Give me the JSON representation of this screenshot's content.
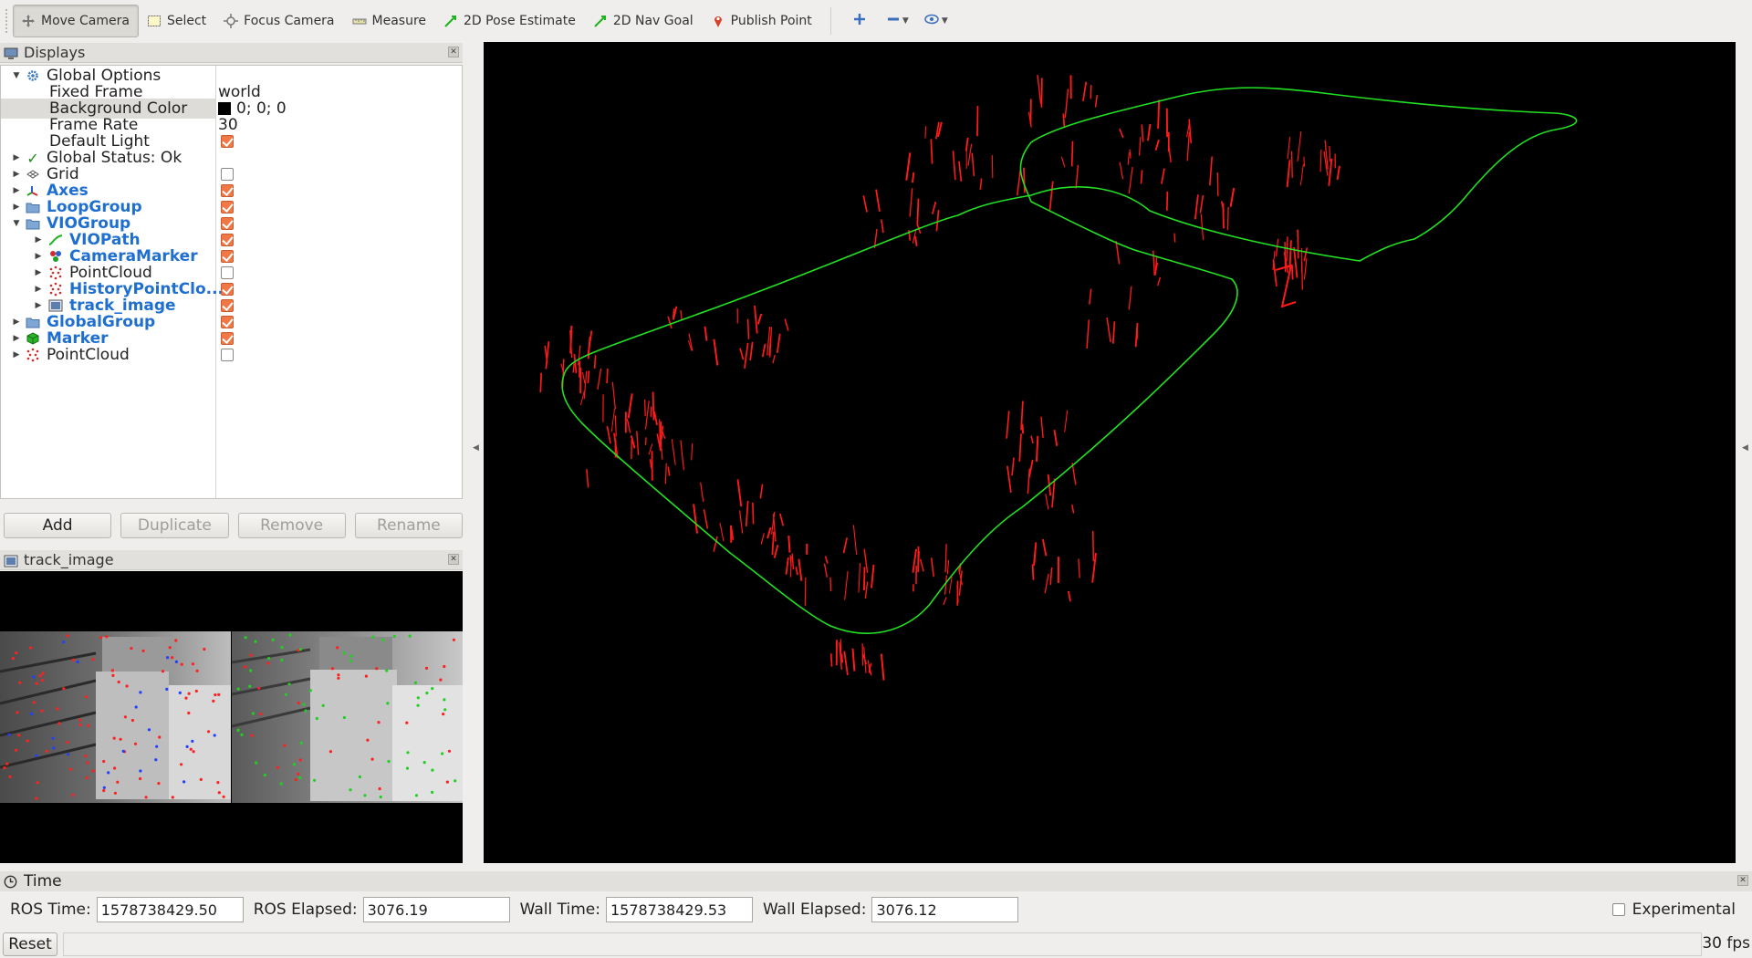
{
  "toolbar": {
    "tools": [
      {
        "label": "Move Camera",
        "icon": "move-camera-icon",
        "active": true
      },
      {
        "label": "Select",
        "icon": "select-icon",
        "active": false
      },
      {
        "label": "Focus Camera",
        "icon": "focus-camera-icon",
        "active": false
      },
      {
        "label": "Measure",
        "icon": "measure-icon",
        "active": false
      },
      {
        "label": "2D Pose Estimate",
        "icon": "pose-estimate-icon",
        "active": false
      },
      {
        "label": "2D Nav Goal",
        "icon": "nav-goal-icon",
        "active": false
      },
      {
        "label": "Publish Point",
        "icon": "publish-point-icon",
        "active": false
      }
    ],
    "extra_buttons": [
      "plus-icon",
      "minus-icon",
      "eye-icon"
    ]
  },
  "displays": {
    "title": "Displays",
    "rows": [
      {
        "label": "Global Options",
        "value": ""
      },
      {
        "label": "Fixed Frame",
        "value": "world"
      },
      {
        "label": "Background Color",
        "value": "0; 0; 0"
      },
      {
        "label": "Frame Rate",
        "value": "30"
      },
      {
        "label": "Default Light",
        "checked": true
      },
      {
        "label": "Global Status: Ok",
        "value": ""
      },
      {
        "label": "Grid",
        "checked": false
      },
      {
        "label": "Axes",
        "checked": true
      },
      {
        "label": "LoopGroup",
        "checked": true
      },
      {
        "label": "VIOGroup",
        "checked": true
      },
      {
        "label": "VIOPath",
        "checked": true
      },
      {
        "label": "CameraMarker",
        "checked": true
      },
      {
        "label": "PointCloud",
        "checked": false
      },
      {
        "label": "HistoryPointClo...",
        "checked": true
      },
      {
        "label": "track_image",
        "checked": true
      },
      {
        "label": "GlobalGroup",
        "checked": true
      },
      {
        "label": "Marker",
        "checked": true
      },
      {
        "label": "PointCloud",
        "checked": false
      }
    ],
    "buttons": {
      "add": "Add",
      "duplicate": "Duplicate",
      "remove": "Remove",
      "rename": "Rename"
    }
  },
  "track_panel": {
    "title": "track_image"
  },
  "colors": {
    "background": "#000000",
    "path": "#22e022",
    "landmarks": "#ff1a1a",
    "accent_blue": "#1f6fd0",
    "checkbox": "#f07746"
  },
  "time": {
    "title": "Time",
    "ros_time_label": "ROS Time:",
    "ros_time": "1578738429.50",
    "ros_elapsed_label": "ROS Elapsed:",
    "ros_elapsed": "3076.19",
    "wall_time_label": "Wall Time:",
    "wall_time": "1578738429.53",
    "wall_elapsed_label": "Wall Elapsed:",
    "wall_elapsed": "3076.12",
    "experimental_label": "Experimental",
    "experimental": false
  },
  "status": {
    "reset_label": "Reset",
    "fps": "30 fps"
  }
}
